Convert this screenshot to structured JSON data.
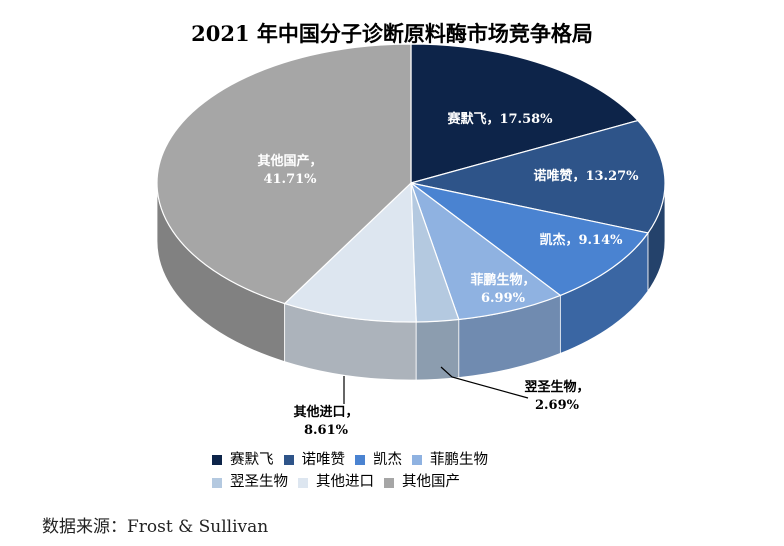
{
  "title": "2021 年中国分子诊断原料酶市场竞争格局",
  "source": "数据来源：Frost & Sullivan",
  "chart_data": {
    "type": "pie",
    "title": "2021 年中国分子诊断原料酶市场竞争格局",
    "categories": [
      "赛默飞",
      "诺唯赞",
      "凯杰",
      "菲鹏生物",
      "翌圣生物",
      "其他进口",
      "其他国产"
    ],
    "values": [
      17.58,
      13.27,
      9.14,
      6.99,
      2.69,
      8.61,
      41.71
    ],
    "labels": [
      "赛默飞，17.58%",
      "诺唯赞，13.27%",
      "凯杰，9.14%",
      "菲鹏生物，6.99%",
      "翌圣生物，2.69%",
      "其他进口，8.61%",
      "其他国产，41.71%"
    ],
    "colors": [
      "#0d2449",
      "#2e5489",
      "#4a83d1",
      "#8fb2e1",
      "#b4c9e0",
      "#dde6f0",
      "#a6a6a6"
    ],
    "legend_position": "bottom",
    "style": "3d"
  }
}
